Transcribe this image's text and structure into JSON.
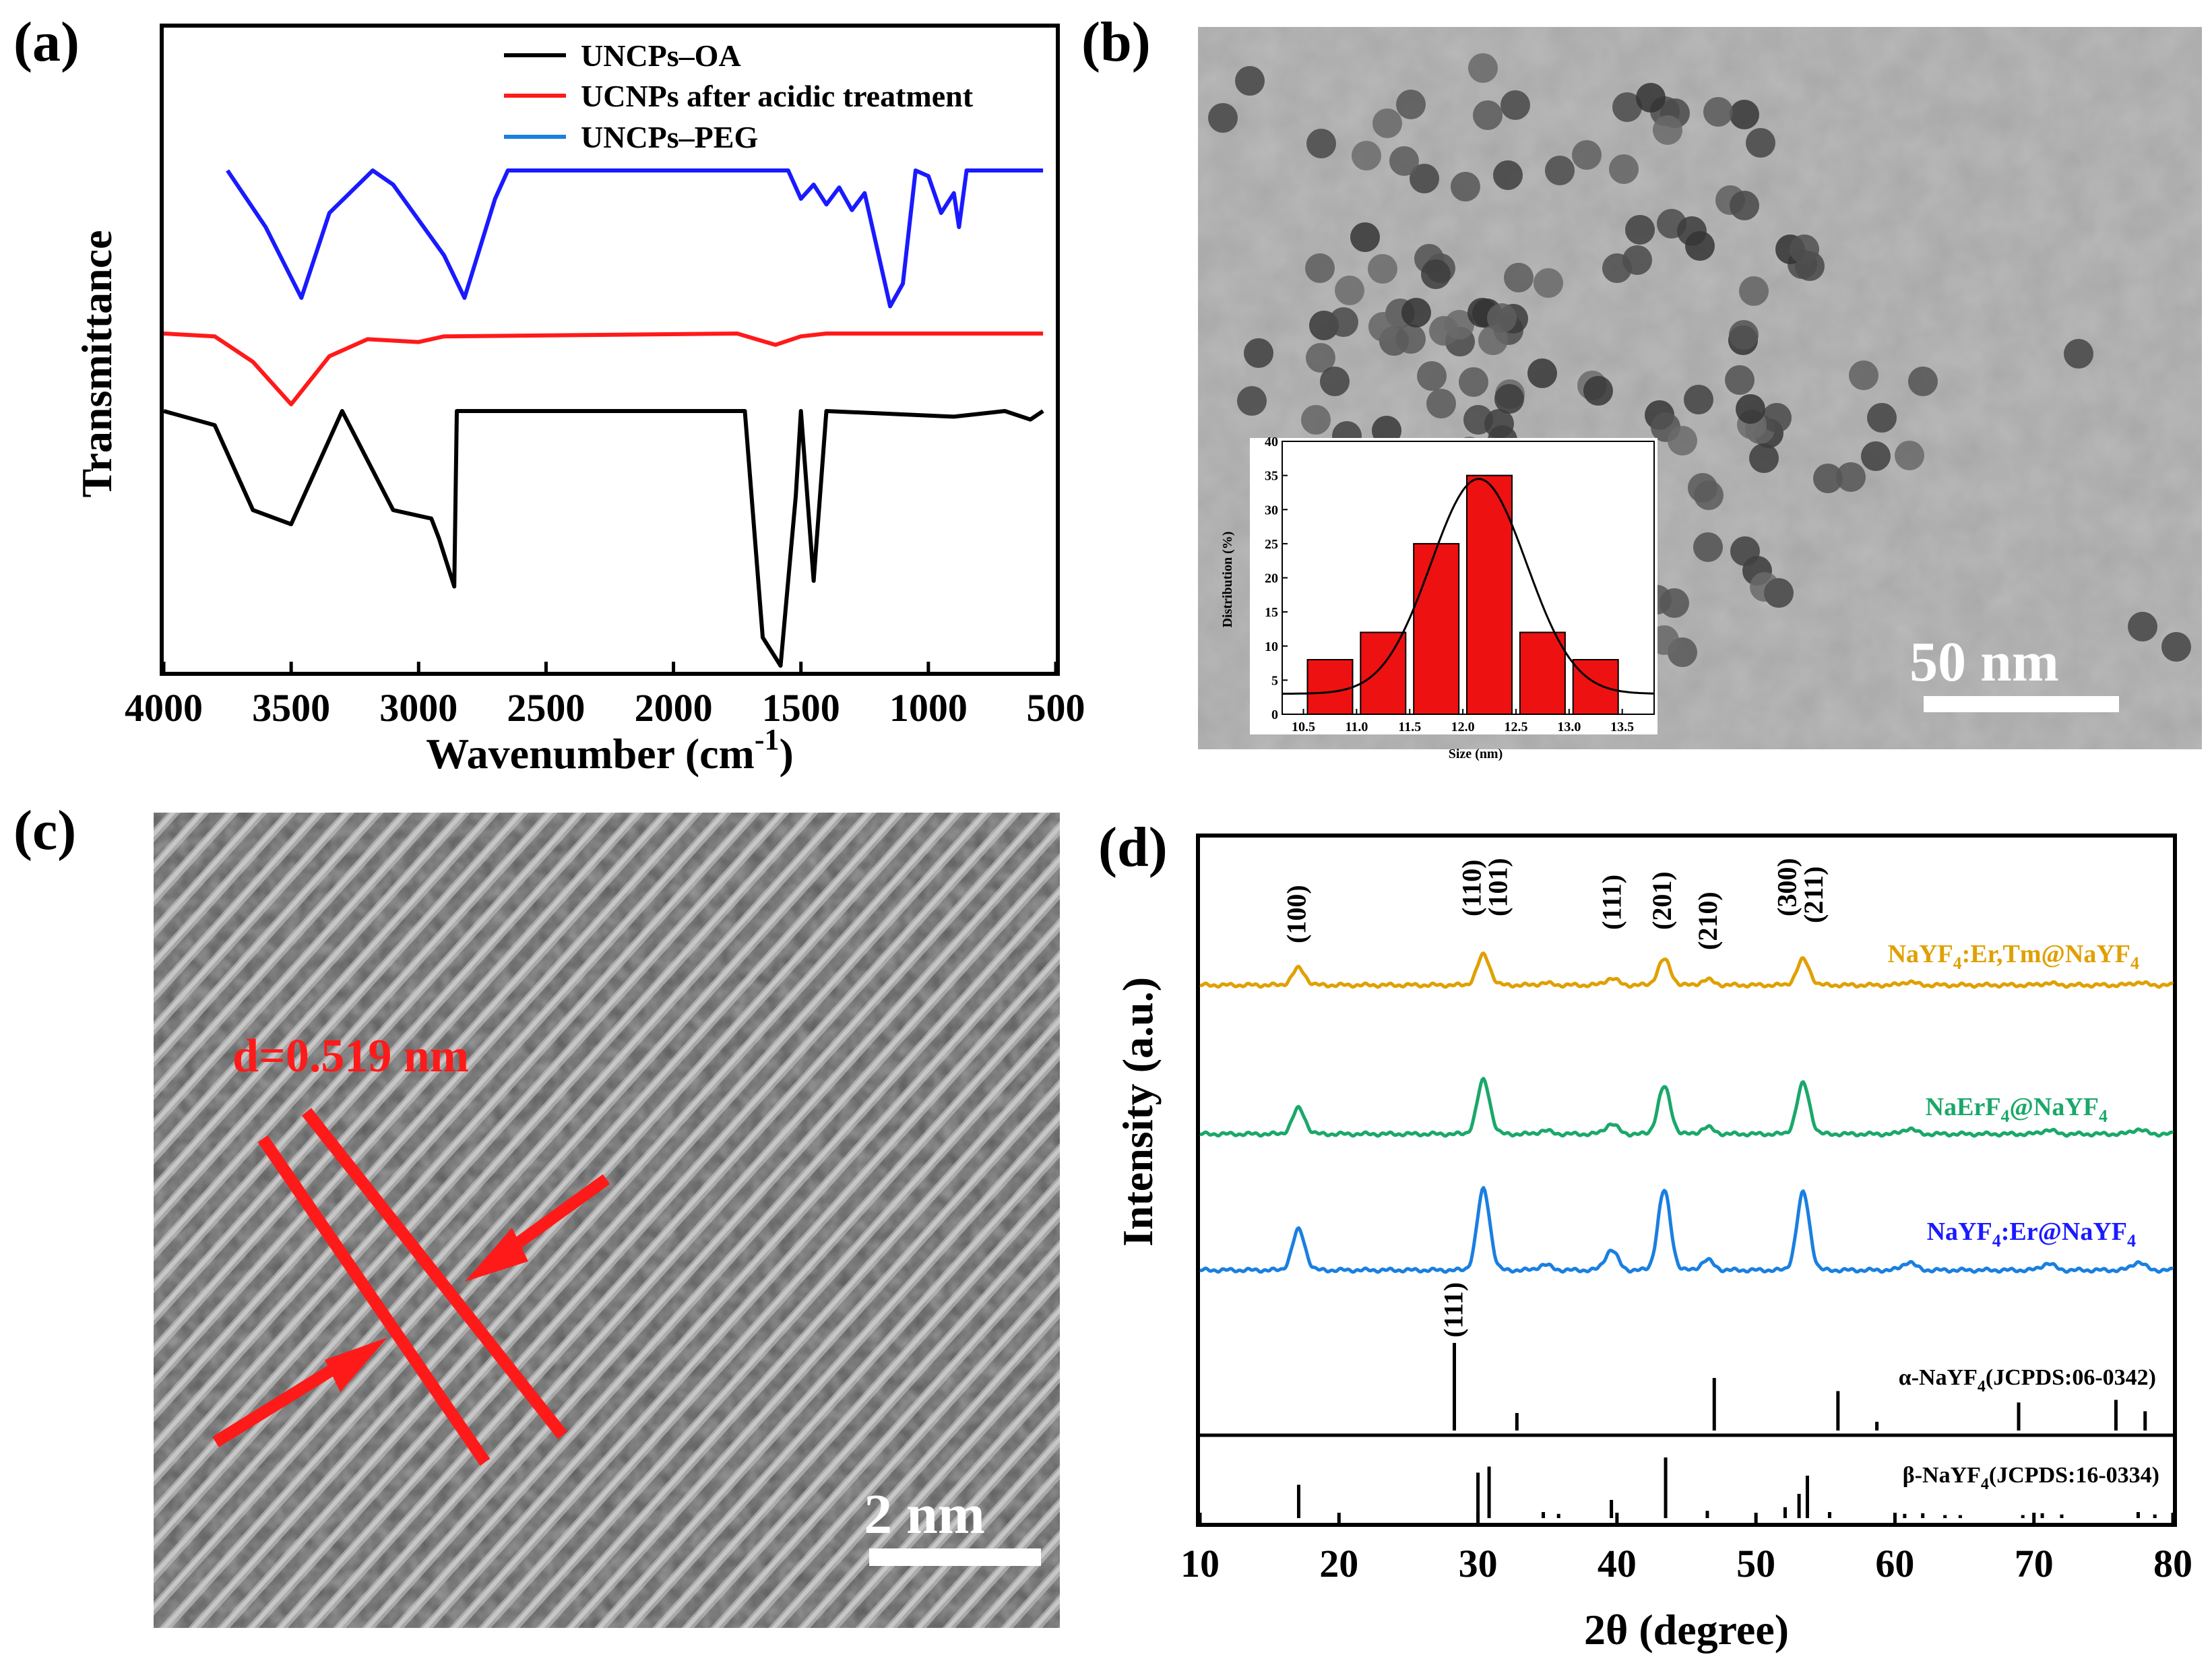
{
  "panels": {
    "a": {
      "label": "(a)"
    },
    "b": {
      "label": "(b)",
      "scale_bar": "50 nm"
    },
    "c": {
      "label": "(c)",
      "scale_bar": "2 nm",
      "annotation": "d=0.519 nm"
    },
    "d": {
      "label": "(d)"
    }
  },
  "colors": {
    "black": "#000000",
    "red": "#ff1a1a",
    "blue": "#1a1aff",
    "orange": "#e0a000",
    "green": "#1aa86a",
    "lightblue": "#1a7fe0"
  },
  "chart_data": [
    {
      "id": "a",
      "type": "line",
      "title": "",
      "xlabel": "Wavenumber (cm⁻¹)",
      "ylabel": "Transmittance",
      "xlim": [
        4000,
        500
      ],
      "xticks": [
        4000,
        3500,
        3000,
        2500,
        2000,
        1500,
        1000,
        500
      ],
      "legend": [
        "UNCPs–OA",
        "UCNPs after acidic treatment",
        "UNCPs–PEG"
      ],
      "series": [
        {
          "name": "UNCPs–PEG",
          "color": "#1a1aff",
          "x": [
            3750,
            3600,
            3460,
            3350,
            3180,
            3100,
            2900,
            2820,
            2700,
            2650,
            1550,
            1500,
            1450,
            1400,
            1350,
            1300,
            1250,
            1150,
            1100,
            1050,
            1000,
            950,
            900,
            880,
            850,
            800,
            550
          ],
          "y": [
            0,
            -20,
            -45,
            -15,
            0,
            -5,
            -30,
            -45,
            -10,
            0,
            0,
            -10,
            -5,
            -12,
            -6,
            -14,
            -8,
            -48,
            -40,
            0,
            -2,
            -15,
            -8,
            -20,
            0,
            0,
            0
          ]
        },
        {
          "name": "UCNPs after acidic treatment",
          "color": "#ff1a1a",
          "x": [
            4000,
            3800,
            3650,
            3500,
            3350,
            3200,
            3000,
            2900,
            1750,
            1600,
            1500,
            1400,
            550
          ],
          "y": [
            0,
            -1,
            -10,
            -25,
            -8,
            -2,
            -3,
            -1,
            0,
            -4,
            -1,
            0,
            0
          ]
        },
        {
          "name": "UNCPs–OA",
          "color": "#000000",
          "x": [
            4000,
            3800,
            3650,
            3500,
            3400,
            3300,
            3100,
            2950,
            2920,
            2860,
            2850,
            1720,
            1650,
            1580,
            1560,
            1520,
            1500,
            1450,
            1400,
            900,
            700,
            600,
            550
          ],
          "y": [
            0,
            -5,
            -35,
            -40,
            -20,
            0,
            -35,
            -38,
            -45,
            -62,
            0,
            0,
            -80,
            -90,
            -70,
            -30,
            0,
            -60,
            0,
            -2,
            0,
            -3,
            0
          ]
        }
      ]
    },
    {
      "id": "b-inset",
      "type": "bar",
      "xlabel": "Size (nm)",
      "ylabel": "Distribution (%)",
      "xlim": [
        10.3,
        13.8
      ],
      "ylim": [
        0,
        40
      ],
      "xticks": [
        10.5,
        11.0,
        11.5,
        12.0,
        12.5,
        13.0,
        13.5
      ],
      "yticks": [
        0,
        5,
        10,
        15,
        20,
        25,
        30,
        35,
        40
      ],
      "categories": [
        10.75,
        11.25,
        11.75,
        12.25,
        12.75,
        13.25
      ],
      "values": [
        8,
        12,
        25,
        35,
        12,
        8
      ],
      "fit": {
        "type": "gaussian",
        "mean": 12.15,
        "sigma": 0.45,
        "peak": 34.5,
        "baseline": 3
      }
    },
    {
      "id": "d",
      "type": "line",
      "xlabel": "2θ (degree)",
      "ylabel": "Intensity (a.u.)",
      "xlim": [
        10,
        80
      ],
      "xticks": [
        10,
        20,
        30,
        40,
        50,
        60,
        70,
        80
      ],
      "peaks_hkl": [
        {
          "x": 17,
          "text": "(100)"
        },
        {
          "x": 29.6,
          "text": "(110)"
        },
        {
          "x": 31.5,
          "text": "(101)"
        },
        {
          "x": 39.7,
          "text": "(111)"
        },
        {
          "x": 43.3,
          "text": "(201)"
        },
        {
          "x": 46.6,
          "text": "(210)"
        },
        {
          "x": 52.3,
          "text": "(300)"
        },
        {
          "x": 54.2,
          "text": "(211)"
        }
      ],
      "series": [
        {
          "name": "NaYF₄:Er,Tm@NaYF₄",
          "color": "#e0a000",
          "peaks": [
            [
              17.1,
              25
            ],
            [
              30.4,
              45
            ],
            [
              34.8,
              3
            ],
            [
              39.6,
              10
            ],
            [
              43.4,
              38
            ],
            [
              46.5,
              8
            ],
            [
              53.4,
              38
            ],
            [
              61,
              5
            ],
            [
              71,
              3
            ],
            [
              77.5,
              4
            ]
          ]
        },
        {
          "name": "NaErF₄@NaYF₄",
          "color": "#1aa86a",
          "peaks": [
            [
              17.1,
              38
            ],
            [
              30.4,
              80
            ],
            [
              34.8,
              5
            ],
            [
              39.6,
              15
            ],
            [
              43.4,
              70
            ],
            [
              46.5,
              10
            ],
            [
              53.4,
              75
            ],
            [
              61,
              8
            ],
            [
              71,
              6
            ],
            [
              77.5,
              7
            ]
          ]
        },
        {
          "name": "NaYF₄:Er@NaYF₄",
          "color": "#1a7fe0",
          "peaks": [
            [
              17.1,
              60
            ],
            [
              30.4,
              120
            ],
            [
              34.8,
              8
            ],
            [
              39.6,
              30
            ],
            [
              43.4,
              118
            ],
            [
              46.5,
              15
            ],
            [
              53.4,
              115
            ],
            [
              61,
              12
            ],
            [
              71,
              10
            ],
            [
              77.5,
              12
            ]
          ]
        }
      ],
      "references": [
        {
          "name": "α-NaYF₄(JCPDS:06-0342)",
          "sticks": [
            [
              28.3,
              100
            ],
            [
              32.8,
              20
            ],
            [
              47.0,
              60
            ],
            [
              55.9,
              45
            ],
            [
              58.7,
              10
            ],
            [
              68.9,
              32
            ],
            [
              75.9,
              35
            ],
            [
              78.0,
              22
            ]
          ],
          "hkl": {
            "x": 28.3,
            "text": "(111)"
          }
        },
        {
          "name": "β-NaYF₄(JCPDS:16-0334)",
          "sticks": [
            [
              17.1,
              55
            ],
            [
              30.0,
              75
            ],
            [
              30.8,
              85
            ],
            [
              34.7,
              10
            ],
            [
              35.8,
              7
            ],
            [
              39.6,
              30
            ],
            [
              43.5,
              100
            ],
            [
              46.5,
              12
            ],
            [
              52.1,
              18
            ],
            [
              53.1,
              40
            ],
            [
              53.7,
              70
            ],
            [
              55.3,
              10
            ],
            [
              60.7,
              7
            ],
            [
              62.0,
              8
            ],
            [
              63.6,
              5
            ],
            [
              64.7,
              5
            ],
            [
              69.2,
              5
            ],
            [
              70.6,
              8
            ],
            [
              72.0,
              6
            ],
            [
              77.5,
              10
            ],
            [
              78.7,
              6
            ]
          ]
        }
      ]
    }
  ]
}
